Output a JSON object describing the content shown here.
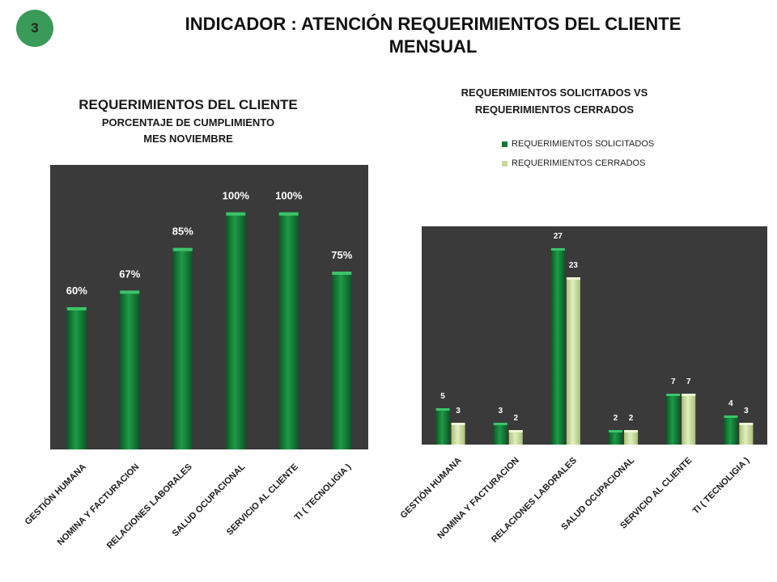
{
  "badge": "3",
  "header": {
    "title_line1": "INDICADOR :   ATENCIÓN REQUERIMIENTOS DEL CLIENTE",
    "title_line2": "MENSUAL"
  },
  "colors": {
    "dark_green": "#0e7a35",
    "light_green": "#c7dc98",
    "plot_bg": "#3a3a3a",
    "badge": "#3a9a58"
  },
  "chart_data": [
    {
      "type": "bar",
      "title": "REQUERIMIENTOS DEL  CLIENTE",
      "subtitle_line1": "PORCENTAJE DE CUMPLIMIENTO",
      "subtitle_line2": "MES NOVIEMBRE",
      "categories": [
        "GESTIÓN HUMANA",
        "NOMINA Y FACTURACION",
        "RELACIONES LABORALES",
        "SALUD OCUPACIONAL",
        "SERVICIO AL CLIENTE",
        "TI ( TECNOLIGIA )"
      ],
      "values": [
        60,
        67,
        85,
        100,
        100,
        75
      ],
      "data_labels": [
        "60%",
        "67%",
        "85%",
        "100%",
        "100%",
        "75%"
      ],
      "ylim": [
        0,
        120
      ],
      "grid": false
    },
    {
      "type": "bar",
      "title_line1": "REQUERIMIENTOS SOLICITADOS VS",
      "title_line2": "REQUERIMIENTOS CERRADOS",
      "categories": [
        "GESTIÓN HUMANA",
        "NOMINA Y FACTURACION",
        "RELACIONES LABORALES",
        "SALUD OCUPACIONAL",
        "SERVICIO AL CLIENTE",
        "TI ( TECNOLIGIA )"
      ],
      "series": [
        {
          "name": "REQUERIMIENTOS SOLICITADOS",
          "values": [
            5,
            3,
            27,
            2,
            7,
            4
          ]
        },
        {
          "name": "REQUERIMIENTOS CERRADOS",
          "values": [
            3,
            2,
            23,
            2,
            7,
            3
          ]
        }
      ],
      "ylim": [
        0,
        30
      ],
      "legend": "top",
      "grid": false
    }
  ]
}
